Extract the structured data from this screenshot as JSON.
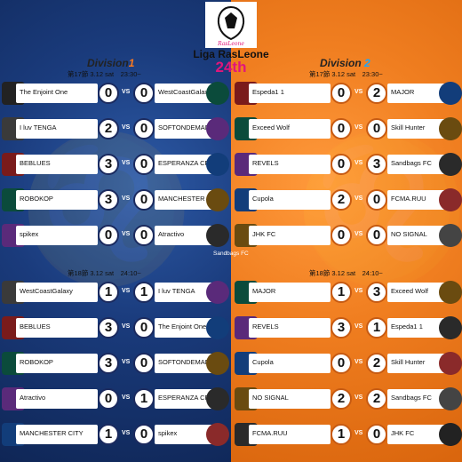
{
  "league": {
    "name": "Liga RasLeone",
    "edition": "24th",
    "logo_alt": "RasLeone"
  },
  "divisions": [
    {
      "label": "Division",
      "number": "1"
    },
    {
      "label": "Division",
      "number": "2"
    }
  ],
  "rounds": {
    "r17": "第17節 3.12 sat　23:30~",
    "r18": "第18節 3.12 sat　24:10~"
  },
  "vs_label": "VS",
  "annotation": "Sandbags FC",
  "matches": {
    "d1_r17": [
      {
        "home": "The Enjoint One",
        "hs": "0",
        "as": "0",
        "away": "WestCoastGalaxy"
      },
      {
        "home": "I luv TENGA",
        "hs": "2",
        "as": "0",
        "away": "SOFTONDEMANDO"
      },
      {
        "home": "BEBLUES",
        "hs": "3",
        "as": "0",
        "away": "ESPERANZA CF"
      },
      {
        "home": "ROBOKOP",
        "hs": "3",
        "as": "0",
        "away": "MANCHESTER CITY"
      },
      {
        "home": "spikex",
        "hs": "0",
        "as": "0",
        "away": "Atractivo"
      }
    ],
    "d1_r18": [
      {
        "home": "WestCoastGalaxy",
        "hs": "1",
        "as": "1",
        "away": "I luv TENGA"
      },
      {
        "home": "BEBLUES",
        "hs": "3",
        "as": "0",
        "away": "The Enjoint One"
      },
      {
        "home": "ROBOKOP",
        "hs": "3",
        "as": "0",
        "away": "SOFTONDEMANDO"
      },
      {
        "home": "Atractivo",
        "hs": "0",
        "as": "1",
        "away": "ESPERANZA CF"
      },
      {
        "home": "MANCHESTER CITY",
        "hs": "1",
        "as": "0",
        "away": "spikex"
      }
    ],
    "d2_r17": [
      {
        "home": "Espeda1 1",
        "hs": "0",
        "as": "2",
        "away": "MAJOR"
      },
      {
        "home": "Exceed Wolf",
        "hs": "0",
        "as": "0",
        "away": "Skill Hunter"
      },
      {
        "home": "REVELS",
        "hs": "0",
        "as": "3",
        "away": "Sandbags FC"
      },
      {
        "home": "Cupola",
        "hs": "2",
        "as": "0",
        "away": "FCMA.RUU"
      },
      {
        "home": "JHK FC",
        "hs": "0",
        "as": "0",
        "away": "NO SIGNAL"
      }
    ],
    "d2_r18": [
      {
        "home": "MAJOR",
        "hs": "1",
        "as": "3",
        "away": "Exceed Wolf"
      },
      {
        "home": "REVELS",
        "hs": "3",
        "as": "1",
        "away": "Espeda1 1"
      },
      {
        "home": "Cupola",
        "hs": "0",
        "as": "2",
        "away": "Skill Hunter"
      },
      {
        "home": "NO SIGNAL",
        "hs": "2",
        "as": "2",
        "away": "Sandbags FC"
      },
      {
        "home": "FCMA.RUU",
        "hs": "1",
        "as": "0",
        "away": "JHK FC"
      }
    ]
  },
  "colors": {
    "left_bg": "#1a3b7c",
    "right_bg": "#f07e20",
    "accent_pink": "#e1167b"
  }
}
